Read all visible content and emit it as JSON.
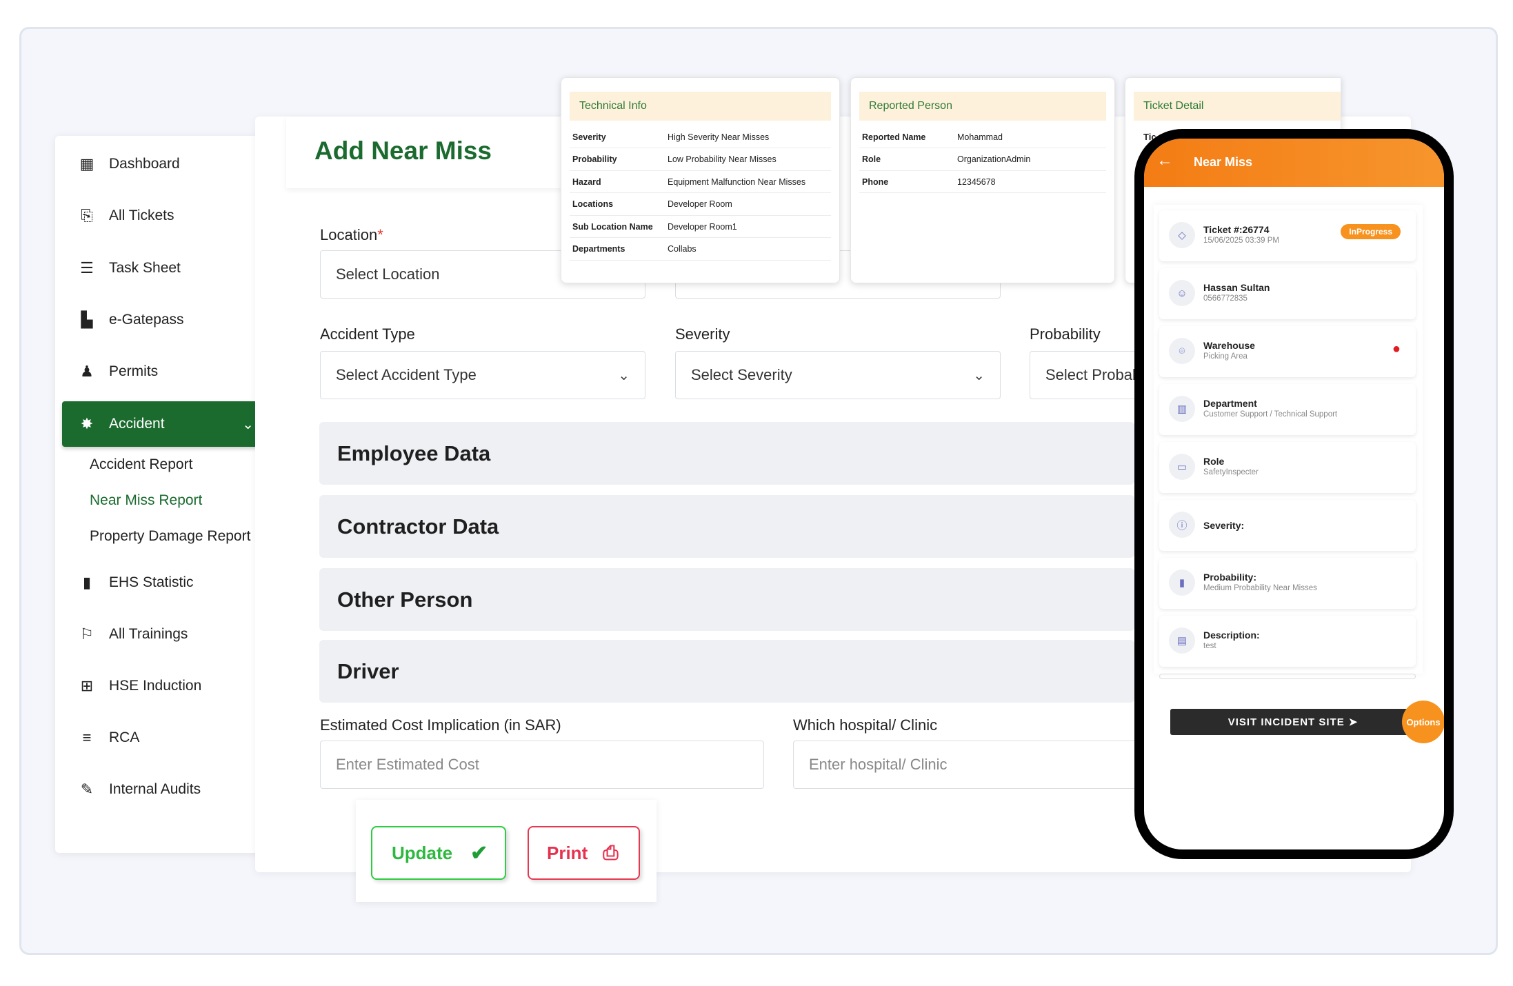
{
  "sidebar": {
    "items": [
      {
        "label": "Dashboard",
        "icon": "table-grid-icon"
      },
      {
        "label": "All Tickets",
        "icon": "tickets-icon"
      },
      {
        "label": "Task Sheet",
        "icon": "task-sheet-icon"
      },
      {
        "label": "e-Gatepass",
        "icon": "gatepass-icon"
      },
      {
        "label": "Permits",
        "icon": "person-icon"
      },
      {
        "label": "Accident",
        "icon": "accident-icon"
      },
      {
        "label": "EHS Statistic",
        "icon": "bar-chart-icon"
      },
      {
        "label": "All Trainings",
        "icon": "training-icon"
      },
      {
        "label": "HSE Induction",
        "icon": "induction-icon"
      },
      {
        "label": "RCA",
        "icon": "sliders-icon"
      },
      {
        "label": "Internal Audits",
        "icon": "pen-icon"
      }
    ],
    "subitems": [
      "Accident Report",
      "Near Miss Report",
      "Property Damage Report"
    ]
  },
  "page": {
    "title": "Add Near Miss"
  },
  "form": {
    "location_label": "Location",
    "location_required": "*",
    "location_value": "Select Location",
    "accident_type_label": "Accident Type",
    "accident_type_value": "Select Accident Type",
    "severity_label": "Severity",
    "severity_value": "Select Severity",
    "probability_label": "Probability",
    "probability_value": "Select Probability",
    "sections": [
      "Employee Data",
      "Contractor Data",
      "Other Person",
      "Driver"
    ],
    "cost_label": "Estimated Cost Implication (in SAR)",
    "cost_placeholder": "Enter Estimated Cost",
    "hospital_label": "Which hospital/ Clinic",
    "hospital_placeholder": "Enter  hospital/ Clinic",
    "update_label": "Update",
    "print_label": "Print"
  },
  "technical_info": {
    "title": "Technical Info",
    "rows": [
      {
        "k": "Severity",
        "v": "High Severity Near Misses"
      },
      {
        "k": "Probability",
        "v": "Low Probability Near Misses"
      },
      {
        "k": "Hazard",
        "v": "Equipment Malfunction Near Misses"
      },
      {
        "k": "Locations",
        "v": "Developer Room"
      },
      {
        "k": "Sub Location Name",
        "v": "Developer Room1"
      },
      {
        "k": "Departments",
        "v": "Collabs"
      }
    ]
  },
  "reported_person": {
    "title": "Reported Person",
    "rows": [
      {
        "k": "Reported Name",
        "v": "Mohammad"
      },
      {
        "k": "Role",
        "v": "OrganizationAdmin"
      },
      {
        "k": "Phone",
        "v": "12345678"
      }
    ]
  },
  "ticket_detail": {
    "title": "Ticket Detail",
    "partial": "Tic"
  },
  "phone": {
    "title": "Near Miss",
    "status": "InProgress",
    "cards": [
      {
        "t1": "Ticket #:26774",
        "t2": "15/06/2025 03:39 PM",
        "icon": "ticket-icon"
      },
      {
        "t1": "Hassan Sultan",
        "t2": "0566772835",
        "icon": "user-icon"
      },
      {
        "t1": "Warehouse",
        "t2": "Picking Area",
        "icon": "location-icon"
      },
      {
        "t1": "Department",
        "t2": "Customer Support / Technical Support",
        "icon": "building-icon"
      },
      {
        "t1": "Role",
        "t2": "SafetyInspecter",
        "icon": "briefcase-icon"
      },
      {
        "t1": "Severity:",
        "t2": "",
        "icon": "info-icon"
      },
      {
        "t1": "Probability:",
        "t2": "Medium Probability Near Misses",
        "icon": "bar-chart-icon"
      },
      {
        "t1": "Description:",
        "t2": "test",
        "icon": "document-icon"
      }
    ],
    "visit_label": "VISIT INCIDENT SITE",
    "options_label": "Options"
  },
  "colors": {
    "brand_green": "#1b6b2f",
    "orange": "#f47c14",
    "update_green": "#2ecc40",
    "print_red": "#e53950"
  }
}
